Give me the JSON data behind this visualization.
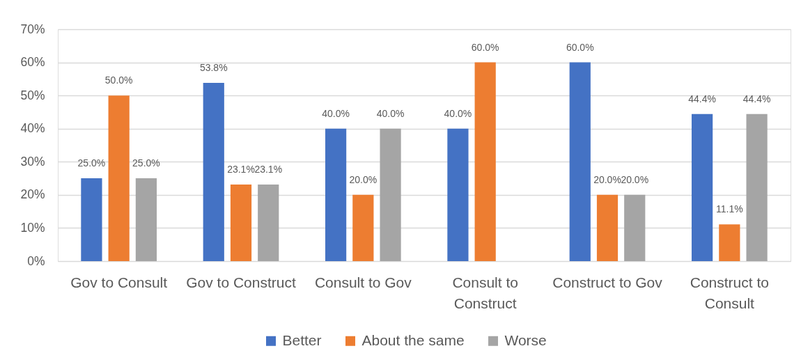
{
  "chart_data": {
    "type": "bar",
    "categories": [
      "Gov to Consult",
      "Gov to Construct",
      "Consult to Gov",
      "Consult to Construct",
      "Construct to Gov",
      "Construct to Consult"
    ],
    "series": [
      {
        "name": "Better",
        "color": "#4472c4",
        "values": [
          25.0,
          53.8,
          40.0,
          40.0,
          60.0,
          44.4
        ],
        "value_labels": [
          "25.0%",
          "53.8%",
          "40.0%",
          "40.0%",
          "60.0%",
          "44.4%"
        ]
      },
      {
        "name": "About the same",
        "color": "#ed7d31",
        "values": [
          50.0,
          23.1,
          20.0,
          60.0,
          20.0,
          11.1
        ],
        "value_labels": [
          "50.0%",
          "23.1%",
          "20.0%",
          "60.0%",
          "20.0%",
          "11.1%"
        ]
      },
      {
        "name": "Worse",
        "color": "#a5a5a5",
        "values": [
          25.0,
          23.1,
          40.0,
          null,
          20.0,
          44.4
        ],
        "value_labels": [
          "25.0%",
          "23.1%",
          "40.0%",
          null,
          "20.0%",
          "44.4%"
        ]
      }
    ],
    "ylim": [
      0,
      70
    ],
    "yticks": [
      {
        "value": 0,
        "label": "0%"
      },
      {
        "value": 10,
        "label": "10%"
      },
      {
        "value": 20,
        "label": "20%"
      },
      {
        "value": 30,
        "label": "30%"
      },
      {
        "value": 40,
        "label": "40%"
      },
      {
        "value": 50,
        "label": "50%"
      },
      {
        "value": 60,
        "label": "60%"
      },
      {
        "value": 70,
        "label": "70%"
      }
    ],
    "grid": "y",
    "legend": "bottom"
  }
}
